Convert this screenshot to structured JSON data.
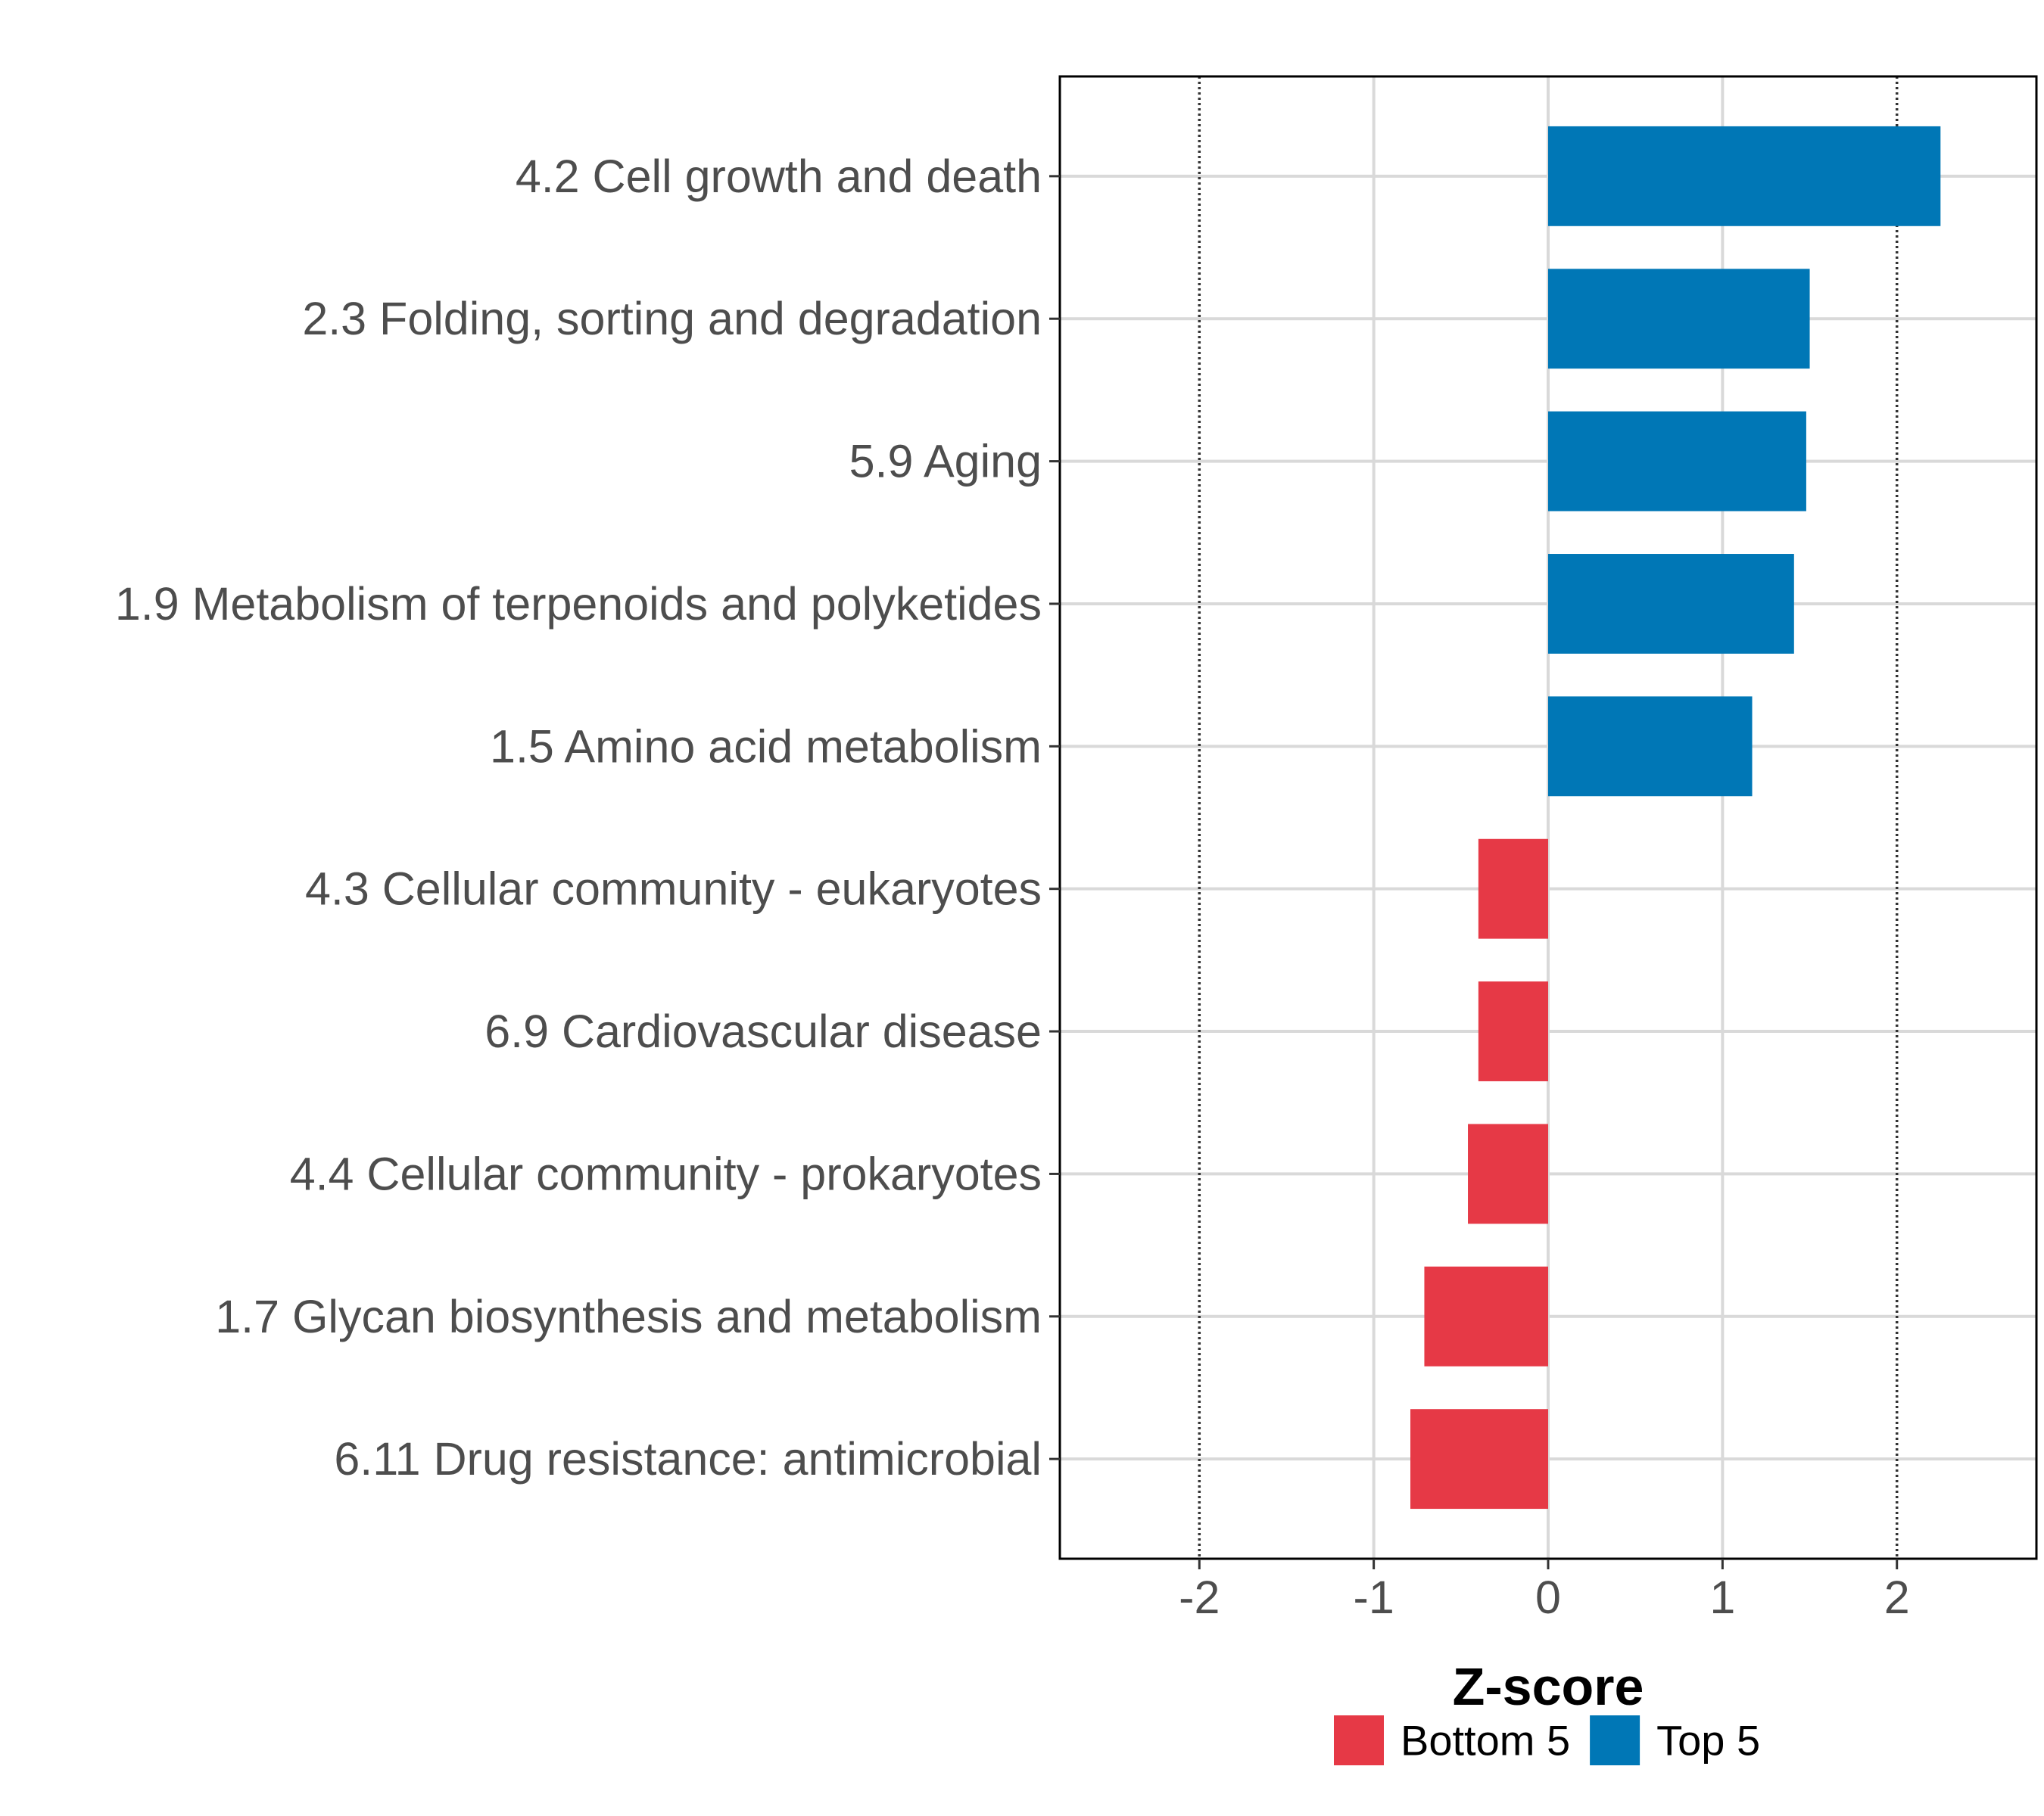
{
  "chart_data": {
    "type": "bar",
    "orientation": "horizontal",
    "title": "",
    "xlabel": "Z-score",
    "ylabel": "",
    "xlim": [
      -2.8,
      2.8
    ],
    "xticks": [
      -2,
      -1,
      0,
      1,
      2
    ],
    "xtick_labels": [
      "-2",
      "-1",
      "0",
      "1",
      "2"
    ],
    "reference_lines": [
      -2,
      2
    ],
    "grid": true,
    "categories": [
      "4.2 Cell growth and death",
      "2.3 Folding, sorting and degradation",
      "5.9 Aging",
      "1.9 Metabolism of terpenoids and polyketides",
      "1.5 Amino acid metabolism",
      "4.3 Cellular community - eukaryotes",
      "6.9 Cardiovascular disease",
      "4.4 Cellular community - prokaryotes",
      "1.7 Glycan biosynthesis and metabolism",
      "6.11 Drug resistance: antimicrobial"
    ],
    "values": [
      2.25,
      1.5,
      1.48,
      1.41,
      1.17,
      -0.4,
      -0.4,
      -0.46,
      -0.71,
      -0.79
    ],
    "groups": [
      "Top 5",
      "Top 5",
      "Top 5",
      "Top 5",
      "Top 5",
      "Bottom 5",
      "Bottom 5",
      "Bottom 5",
      "Bottom 5",
      "Bottom 5"
    ],
    "legend": {
      "placement": "bottom",
      "entries": [
        {
          "name": "Bottom 5",
          "color": "#e63946"
        },
        {
          "name": "Top 5",
          "color": "#0077b6"
        }
      ]
    }
  }
}
